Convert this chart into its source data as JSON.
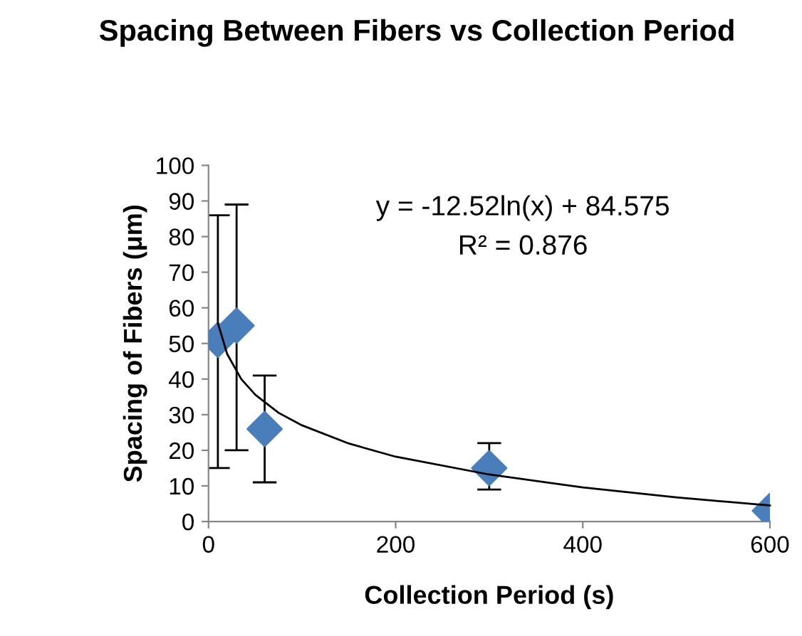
{
  "chart_data": {
    "type": "scatter",
    "title": "Spacing Between Fibers vs Collection Period",
    "xlabel": "Collection Period (s)",
    "ylabel": "Spacing of Fibers (μm)",
    "xlim": [
      0,
      600
    ],
    "xticks": [
      0,
      200,
      400,
      600
    ],
    "ylim": [
      0,
      100
    ],
    "yticks": [
      0,
      10,
      20,
      30,
      40,
      50,
      60,
      70,
      80,
      90,
      100
    ],
    "grid": false,
    "legend": false,
    "marker": "diamond",
    "annotations": [
      "y = -12.52ln(x) + 84.575",
      "R² = 0.876"
    ],
    "series": [
      {
        "color": "#4a7ebb",
        "x": [
          10,
          30,
          60,
          300,
          600
        ],
        "values": [
          51,
          55,
          26,
          15,
          3
        ],
        "errors": [
          [
            15,
            86
          ],
          [
            20,
            89
          ],
          [
            11,
            41
          ],
          [
            9,
            22
          ],
          null
        ]
      },
      {
        "type": "line",
        "color": "#000000",
        "marker": "none",
        "line_style": "solid",
        "x": [
          10,
          20,
          35,
          50,
          75,
          100,
          150,
          200,
          300,
          400,
          500,
          600
        ],
        "values": [
          55.7,
          47,
          40,
          35.6,
          30.5,
          27,
          21.9,
          18.2,
          13.2,
          9.6,
          6.8,
          4.5
        ]
      }
    ]
  }
}
